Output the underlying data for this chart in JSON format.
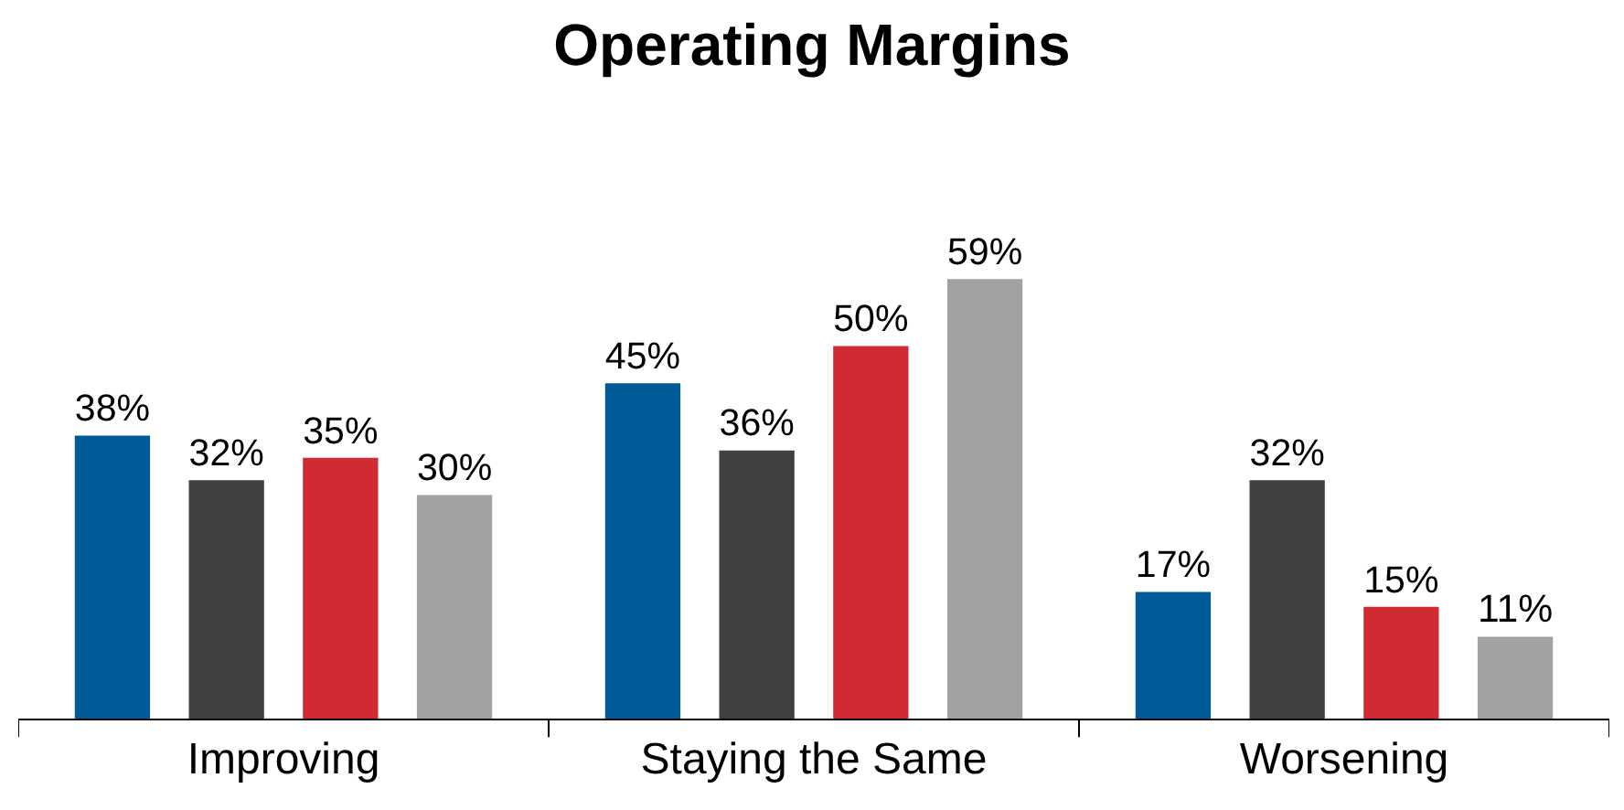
{
  "chart_data": {
    "type": "bar",
    "title": "Operating Margins",
    "categories": [
      "Improving",
      "Staying the Same",
      "Worsening"
    ],
    "series": [
      {
        "color": "#005a97",
        "values": [
          38,
          45,
          17
        ],
        "value_labels": [
          "38%",
          "45%",
          "17%"
        ]
      },
      {
        "color": "#404042",
        "values": [
          32,
          36,
          32
        ],
        "value_labels": [
          "32%",
          "36%",
          "32%"
        ]
      },
      {
        "color": "#d02b33",
        "values": [
          35,
          50,
          15
        ],
        "value_labels": [
          "35%",
          "50%",
          "15%"
        ]
      },
      {
        "color": "#a1a2a4",
        "values": [
          30,
          59,
          11
        ],
        "value_labels": [
          "30%",
          "59%",
          "11%"
        ]
      }
    ],
    "grid": false
  }
}
